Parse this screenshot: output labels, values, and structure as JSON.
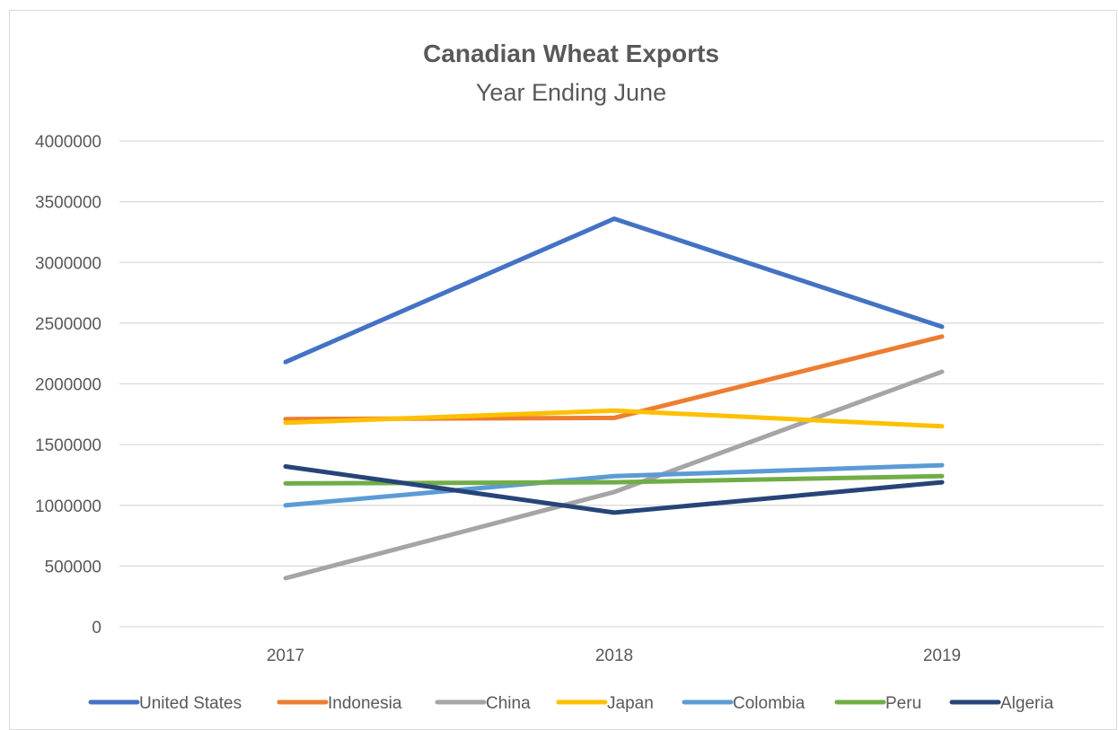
{
  "chart_data": {
    "type": "line",
    "title": "Canadian Wheat Exports",
    "subtitle": "Year Ending June",
    "categories": [
      "2017",
      "2018",
      "2019"
    ],
    "xlabel": "",
    "ylabel": "",
    "ylim": [
      0,
      4000000
    ],
    "yticks": [
      "4000000",
      "3500000",
      "3000000",
      "2500000",
      "2000000",
      "1500000",
      "1000000",
      "500000",
      "0"
    ],
    "ytick_values": [
      4000000,
      3500000,
      3000000,
      2500000,
      2000000,
      1500000,
      1000000,
      500000,
      0
    ],
    "grid": true,
    "legend_position": "bottom",
    "series": [
      {
        "name": "United States",
        "color": "#4472c4",
        "values": [
          2180000,
          3360000,
          2470000
        ]
      },
      {
        "name": "Indonesia",
        "color": "#ed7d31",
        "values": [
          1710000,
          1720000,
          2390000
        ]
      },
      {
        "name": "China",
        "color": "#a5a5a5",
        "values": [
          400000,
          1110000,
          2100000
        ]
      },
      {
        "name": "Japan",
        "color": "#ffc000",
        "values": [
          1680000,
          1780000,
          1650000
        ]
      },
      {
        "name": "Colombia",
        "color": "#5b9bd5",
        "values": [
          1000000,
          1240000,
          1330000
        ]
      },
      {
        "name": "Peru",
        "color": "#70ad47",
        "values": [
          1180000,
          1190000,
          1240000
        ]
      },
      {
        "name": "Algeria",
        "color": "#264478",
        "values": [
          1320000,
          940000,
          1190000
        ]
      }
    ]
  }
}
